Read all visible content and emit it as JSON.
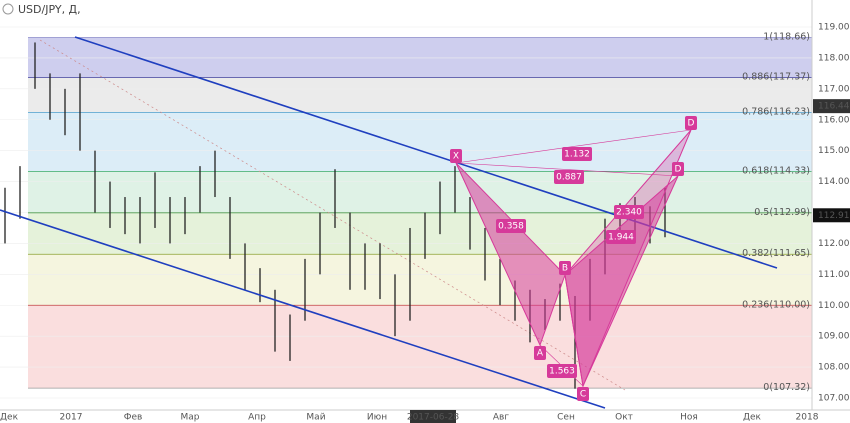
{
  "header": {
    "title": "USD/JPY, Д,"
  },
  "chart_data": {
    "type": "ohlc",
    "ylim": [
      107,
      119
    ],
    "yticks": [
      {
        "value": 107,
        "label": "107.00"
      },
      {
        "value": 108,
        "label": "108.00"
      },
      {
        "value": 109,
        "label": "109.00"
      },
      {
        "value": 110,
        "label": "110.00"
      },
      {
        "value": 111,
        "label": "111.00"
      },
      {
        "value": 112,
        "label": "112.00"
      },
      {
        "value": 113,
        "label": "113.00"
      },
      {
        "value": 114,
        "label": "114.00"
      },
      {
        "value": 115,
        "label": "115.00"
      },
      {
        "value": 116,
        "label": "116.00"
      },
      {
        "value": 117,
        "label": "117.00"
      },
      {
        "value": 118,
        "label": "118.00"
      },
      {
        "value": 119,
        "label": "119.00"
      }
    ],
    "xlabels": [
      "Дек",
      "2017",
      "Фев",
      "Мар",
      "Апр",
      "Май",
      "Июн",
      "2017-06-28",
      "Авг",
      "Сен",
      "Окт",
      "Ноя",
      "Дек",
      "2018"
    ],
    "color": "#222222",
    "high": [
      113.8,
      114.5,
      118.5,
      117.5,
      117,
      117.5,
      115,
      114,
      113.5,
      113.5,
      114.3,
      113.5,
      113.5,
      114.5,
      115,
      113.5,
      112,
      111.2,
      110.5,
      109.7,
      111.5,
      113,
      114.4,
      113,
      112,
      112,
      111,
      112.5,
      113,
      114,
      114.5,
      113.5,
      112.5,
      111.5,
      110.8,
      110.5,
      110.2,
      110.7,
      110.3,
      111.5,
      112.8,
      113.3,
      113.5,
      113.2,
      113.8
    ],
    "low": [
      112,
      112.8,
      117,
      116,
      115.5,
      115,
      113,
      112.5,
      112.3,
      112,
      112.5,
      112,
      112.3,
      113,
      113.5,
      111.5,
      110.5,
      110.1,
      108.5,
      108.2,
      109.5,
      111,
      112.5,
      110.5,
      110.5,
      110.2,
      109,
      109.5,
      111.5,
      112.3,
      113,
      111.8,
      110.8,
      110,
      109.5,
      108.8,
      109.2,
      109.5,
      107.3,
      109.5,
      111,
      112,
      112.3,
      112,
      112.2
    ],
    "price_labels": [
      {
        "value": 116.44,
        "label": "116.44"
      },
      {
        "value": 112.91,
        "label": "112.91"
      }
    ],
    "fib_levels": [
      {
        "value": 118.66,
        "label": "1(118.66)",
        "color": "#8a8ac8"
      },
      {
        "value": 117.37,
        "label": "0.886(117.37)",
        "color": "#3c3c9c"
      },
      {
        "value": 116.23,
        "label": "0.786(116.23)",
        "color": "#4aa0d0"
      },
      {
        "value": 114.33,
        "label": "0.618(114.33)",
        "color": "#3aaa6a"
      },
      {
        "value": 112.99,
        "label": "0.5(112.99)",
        "color": "#4a9a4a"
      },
      {
        "value": 111.65,
        "label": "0.382(111.65)",
        "color": "#8aa030"
      },
      {
        "value": 110.0,
        "label": "0.236(110.00)",
        "color": "#c04040"
      },
      {
        "value": 107.32,
        "label": "0(107.32)",
        "color": "#999999"
      }
    ],
    "pattern_points": [
      "X",
      "A",
      "B",
      "C",
      "D",
      "D"
    ],
    "pattern_ratios": [
      "0.358",
      "1.563",
      "0.887",
      "1.132",
      "1.944",
      "2.340"
    ]
  }
}
